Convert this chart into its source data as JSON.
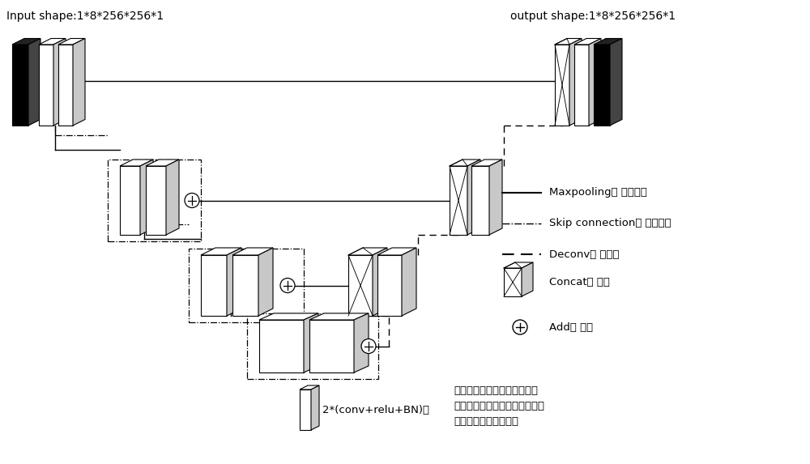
{
  "input_label": "Input shape:1*8*256*256*1",
  "output_label": "output shape:1*8*256*256*1",
  "bg_color": "#ffffff",
  "bottom_label_left": "2*(conv+relu+BN)：",
  "bottom_label_right_line1": "两个卷积块，每个卷积块包含",
  "bottom_label_right_line2": "一个基本卷积、一个激活函数和",
  "bottom_label_right_line3": "一个批量归一化层操作",
  "legend_maxpool_label": "Maxpooling： 最大池化",
  "legend_skip_label": "Skip connection： 残差连接",
  "legend_deconv_label": "Deconv： 反卷积",
  "legend_concat_label": "Concat： 堆叠",
  "legend_add_label": "Add： 相加"
}
